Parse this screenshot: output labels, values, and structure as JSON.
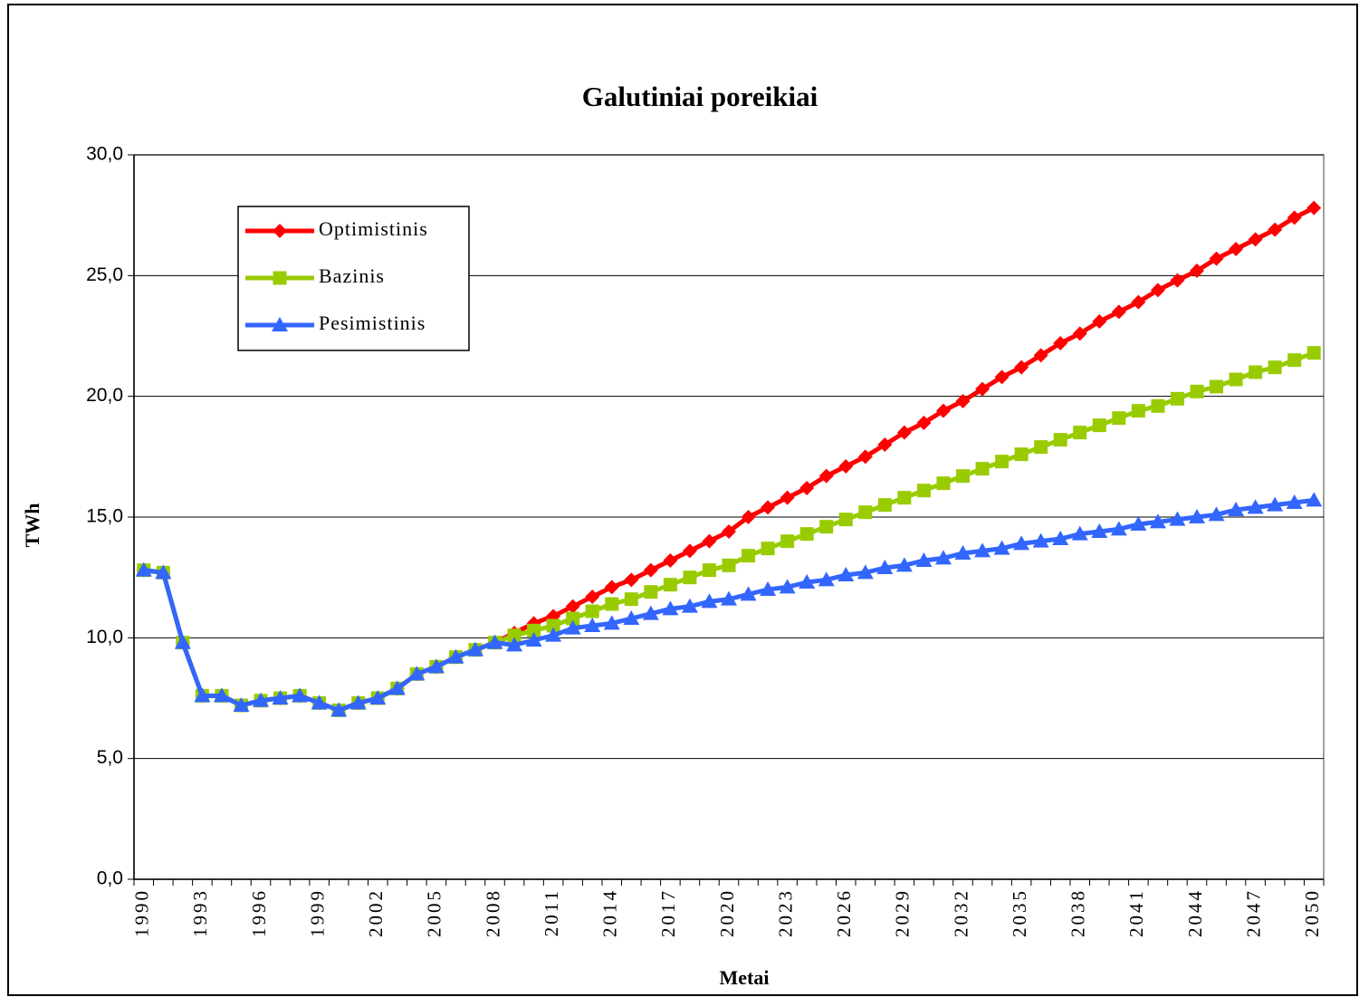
{
  "chart_data": {
    "type": "line",
    "title": "Galutiniai poreikiai",
    "x_label": "Metai",
    "y_label": "TWh",
    "categories": [
      "1990",
      null,
      null,
      "1993",
      null,
      null,
      "1996",
      null,
      null,
      "1999",
      null,
      null,
      "2002",
      null,
      null,
      "2005",
      null,
      null,
      "2008",
      null,
      null,
      "2011",
      null,
      null,
      "2014",
      null,
      null,
      "2017",
      null,
      null,
      "2020",
      null,
      null,
      "2023",
      null,
      null,
      "2026",
      null,
      null,
      "2029",
      null,
      null,
      "2032",
      null,
      null,
      "2035",
      null,
      null,
      "2038",
      null,
      null,
      "2041",
      null,
      null,
      "2044",
      null,
      null,
      "2047",
      null,
      null,
      "2050"
    ],
    "series": [
      {
        "name": "Optimistinis",
        "color": "#ff0000",
        "marker": "diamond",
        "values": [
          12.8,
          12.7,
          9.8,
          7.6,
          7.6,
          7.2,
          7.4,
          7.5,
          7.6,
          7.3,
          7.0,
          7.3,
          7.5,
          7.9,
          8.5,
          8.8,
          9.2,
          9.5,
          9.8,
          10.2,
          10.6,
          10.9,
          11.3,
          11.7,
          12.1,
          12.4,
          12.8,
          13.2,
          13.6,
          14.0,
          14.4,
          15.0,
          15.4,
          15.8,
          16.2,
          16.7,
          17.1,
          17.5,
          18.0,
          18.5,
          18.9,
          19.4,
          19.8,
          20.3,
          20.8,
          21.2,
          21.7,
          22.2,
          22.6,
          23.1,
          23.5,
          23.9,
          24.4,
          24.8,
          25.2,
          25.7,
          26.1,
          26.5,
          26.9,
          27.4,
          27.8
        ]
      },
      {
        "name": "Bazinis",
        "color": "#99cc00",
        "marker": "square",
        "values": [
          12.8,
          12.7,
          9.8,
          7.6,
          7.6,
          7.2,
          7.4,
          7.5,
          7.6,
          7.3,
          7.0,
          7.3,
          7.5,
          7.9,
          8.5,
          8.8,
          9.2,
          9.5,
          9.8,
          10.1,
          10.3,
          10.5,
          10.8,
          11.1,
          11.4,
          11.6,
          11.9,
          12.2,
          12.5,
          12.8,
          13.0,
          13.4,
          13.7,
          14.0,
          14.3,
          14.6,
          14.9,
          15.2,
          15.5,
          15.8,
          16.1,
          16.4,
          16.7,
          17.0,
          17.3,
          17.6,
          17.9,
          18.2,
          18.5,
          18.8,
          19.1,
          19.4,
          19.6,
          19.9,
          20.2,
          20.4,
          20.7,
          21.0,
          21.2,
          21.5,
          21.8
        ]
      },
      {
        "name": "Pesimistinis",
        "color": "#3366ff",
        "marker": "triangle",
        "values": [
          12.8,
          12.7,
          9.8,
          7.6,
          7.6,
          7.2,
          7.4,
          7.5,
          7.6,
          7.3,
          7.0,
          7.3,
          7.5,
          7.9,
          8.5,
          8.8,
          9.2,
          9.5,
          9.8,
          9.7,
          9.9,
          10.1,
          10.4,
          10.5,
          10.6,
          10.8,
          11.0,
          11.2,
          11.3,
          11.5,
          11.6,
          11.8,
          12.0,
          12.1,
          12.3,
          12.4,
          12.6,
          12.7,
          12.9,
          13.0,
          13.2,
          13.3,
          13.5,
          13.6,
          13.7,
          13.9,
          14.0,
          14.1,
          14.3,
          14.4,
          14.5,
          14.7,
          14.8,
          14.9,
          15.0,
          15.1,
          15.3,
          15.4,
          15.5,
          15.6,
          15.7
        ]
      }
    ],
    "ylim": [
      0,
      30
    ],
    "yticks": [
      {
        "value": 0,
        "label": "0,0"
      },
      {
        "value": 5,
        "label": "5,0"
      },
      {
        "value": 10,
        "label": "10,0"
      },
      {
        "value": 15,
        "label": "15,0"
      },
      {
        "value": 20,
        "label": "20,0"
      },
      {
        "value": 25,
        "label": "25,0"
      },
      {
        "value": 30,
        "label": "30,0"
      }
    ],
    "grid": true,
    "legend": "upper left"
  }
}
